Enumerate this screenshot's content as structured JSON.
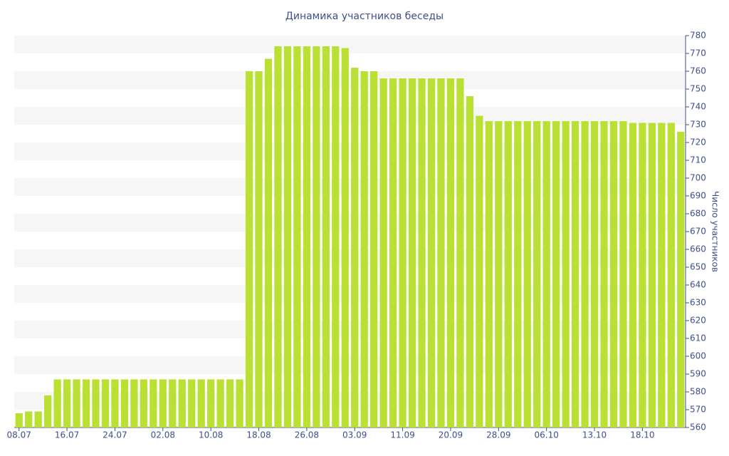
{
  "chart_data": {
    "type": "bar",
    "title": "Динамика участников беседы",
    "y_label": "Число участников",
    "categories": [
      "08.07",
      null,
      null,
      null,
      null,
      "16.07",
      null,
      null,
      null,
      null,
      "24.07",
      null,
      null,
      null,
      null,
      "02.08",
      null,
      null,
      null,
      null,
      "10.08",
      null,
      null,
      null,
      null,
      "18.08",
      null,
      null,
      null,
      null,
      "26.08",
      null,
      null,
      null,
      null,
      "03.09",
      null,
      null,
      null,
      null,
      "11.09",
      null,
      null,
      null,
      null,
      "20.09",
      null,
      null,
      null,
      null,
      "28.09",
      null,
      null,
      null,
      null,
      "06.10",
      null,
      null,
      null,
      null,
      "13.10",
      null,
      null,
      null,
      null,
      "18.10",
      null,
      null,
      null,
      null
    ],
    "values": [
      568,
      569,
      569,
      578,
      587,
      587,
      587,
      587,
      587,
      587,
      587,
      587,
      587,
      587,
      587,
      587,
      587,
      587,
      587,
      587,
      587,
      587,
      587,
      587,
      760,
      760,
      767,
      774,
      774,
      774,
      774,
      774,
      774,
      774,
      773,
      762,
      760,
      760,
      756,
      756,
      756,
      756,
      756,
      756,
      756,
      756,
      756,
      746,
      735,
      732,
      732,
      732,
      732,
      732,
      732,
      732,
      732,
      732,
      732,
      732,
      732,
      732,
      732,
      732,
      731,
      731,
      731,
      731,
      731,
      726
    ],
    "color": "#b9e032",
    "ylim": [
      560,
      780
    ],
    "yticks": [
      560,
      570,
      580,
      590,
      600,
      610,
      620,
      630,
      640,
      650,
      660,
      670,
      680,
      690,
      700,
      710,
      720,
      730,
      740,
      750,
      760,
      770,
      780
    ],
    "y_axis_side": "right",
    "banded_background": true
  }
}
